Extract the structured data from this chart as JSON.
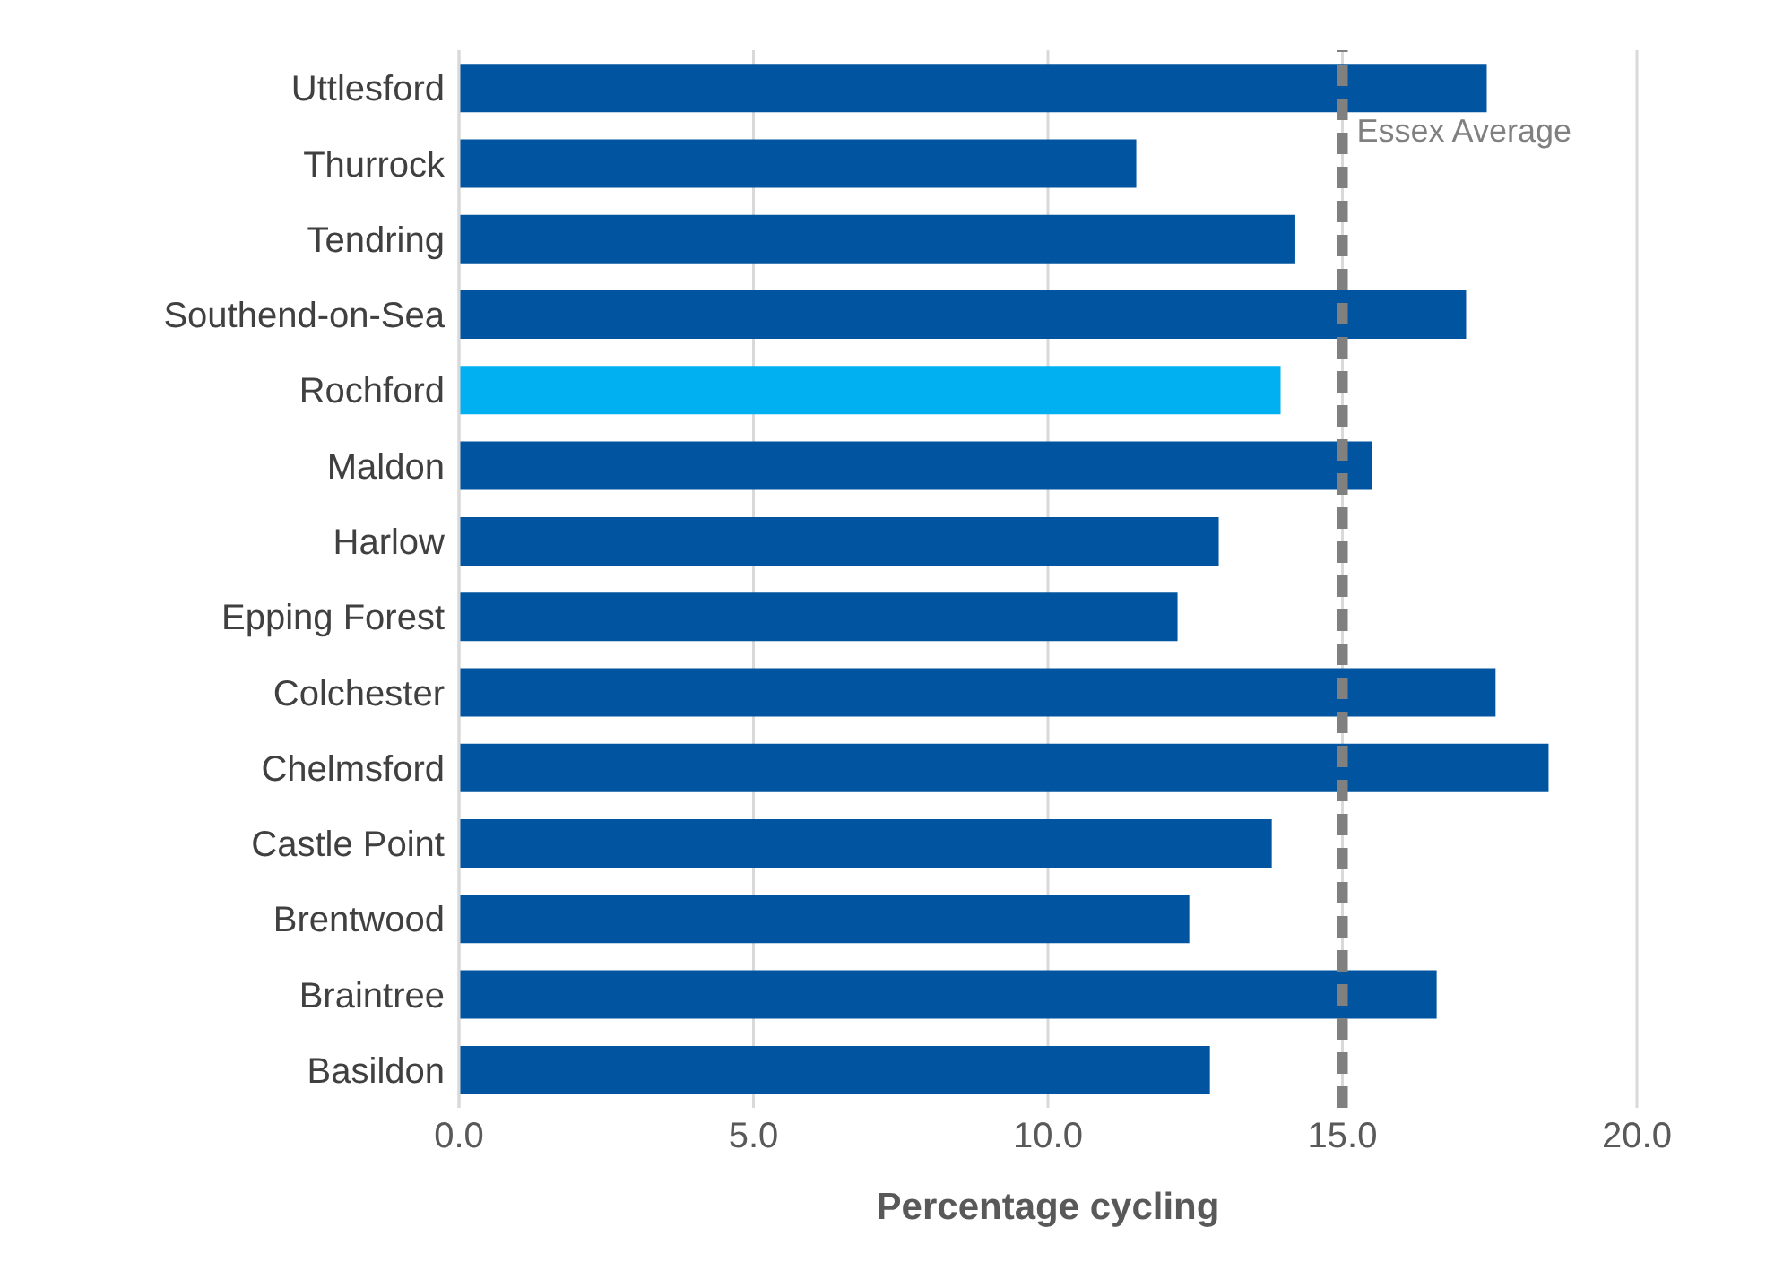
{
  "chart_data": {
    "type": "bar",
    "orientation": "horizontal",
    "xlabel": "Percentage cycling",
    "categories": [
      "Uttlesford",
      "Thurrock",
      "Tendring",
      "Southend-on-Sea",
      "Rochford",
      "Maldon",
      "Harlow",
      "Epping Forest",
      "Colchester",
      "Chelmsford",
      "Castle Point",
      "Brentwood",
      "Braintree",
      "Basildon"
    ],
    "values": [
      17.45,
      11.5,
      14.2,
      17.1,
      13.95,
      15.5,
      12.9,
      12.2,
      17.6,
      18.5,
      13.8,
      12.4,
      16.6,
      12.75
    ],
    "colors": [
      "#0054a0",
      "#0054a0",
      "#0054a0",
      "#0054a0",
      "#00b0f0",
      "#0054a0",
      "#0054a0",
      "#0054a0",
      "#0054a0",
      "#0054a0",
      "#0054a0",
      "#0054a0",
      "#0054a0",
      "#0054a0"
    ],
    "xlim": [
      0,
      20
    ],
    "xticks": [
      {
        "value": 0,
        "label": "0.0"
      },
      {
        "value": 5,
        "label": "5.0"
      },
      {
        "value": 10,
        "label": "10.0"
      },
      {
        "value": 15,
        "label": "15.0"
      },
      {
        "value": 20,
        "label": "20.0"
      }
    ],
    "grid": "x",
    "ref_lines": [
      {
        "axis": "x",
        "value": 15,
        "label": "Essex Average",
        "color": "#808080",
        "line_style": "dashed"
      }
    ]
  }
}
